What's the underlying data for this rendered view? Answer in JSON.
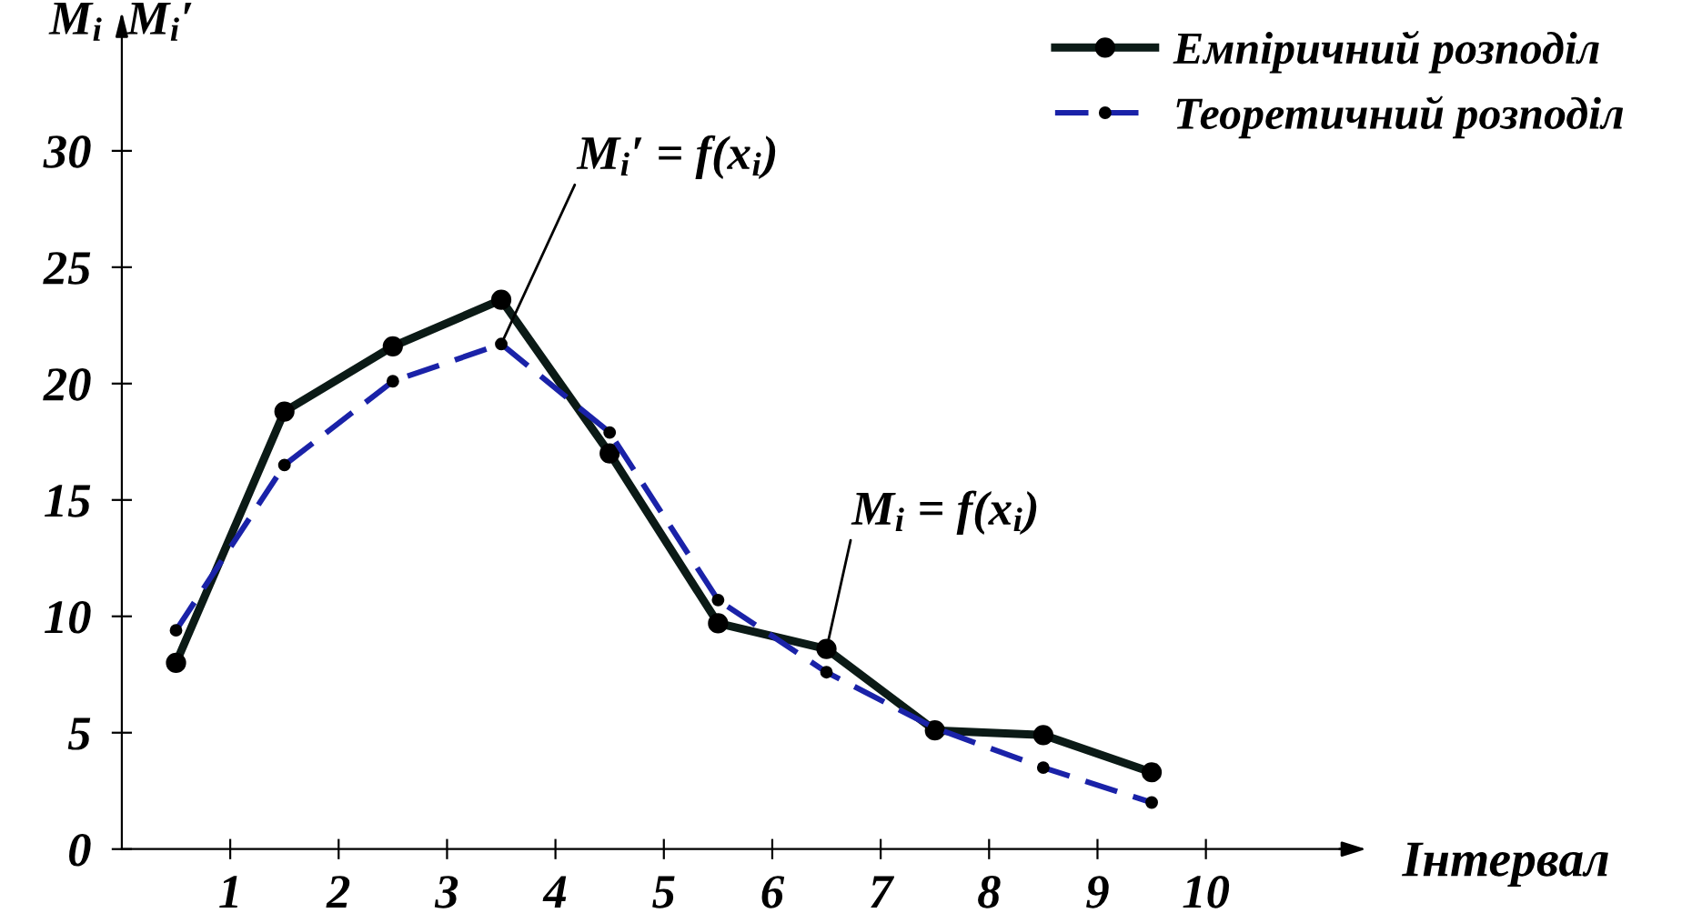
{
  "chart_data": {
    "type": "line",
    "xlabel": "Інтервал",
    "ylabel": "M$_{i}$  M$_{i}$′",
    "x": [
      0.5,
      1.5,
      2.5,
      3.5,
      4.5,
      5.5,
      6.5,
      7.5,
      8.5,
      9.5
    ],
    "series": [
      {
        "name": "Емпіричний розподіл",
        "color": "#0b1a16",
        "line_style": "solid",
        "values": [
          8.0,
          18.8,
          21.6,
          23.6,
          17.0,
          9.7,
          8.6,
          5.1,
          4.9,
          3.3
        ]
      },
      {
        "name": "Теоретичний розподіл",
        "color": "#1a22a8",
        "line_style": "dashed",
        "values": [
          9.4,
          16.5,
          20.1,
          21.7,
          17.9,
          10.7,
          7.6,
          5.2,
          3.5,
          2.0
        ]
      }
    ],
    "annotations": [
      {
        "text": "M$_{i}$′ = f(x$_{i}$)",
        "x": 3.5,
        "y": 21.7
      },
      {
        "text": "M$_{i}$ = f(x$_{i}$)",
        "x": 6.5,
        "y": 8.6
      }
    ],
    "xlim": [
      0,
      11.3
    ],
    "ylim": [
      0,
      35.5
    ],
    "xticks": [
      1,
      2,
      3,
      4,
      5,
      6,
      7,
      8,
      9,
      10
    ],
    "yticks": [
      0,
      5,
      10,
      15,
      20,
      25,
      30
    ],
    "marker": "circle",
    "grid": false,
    "legend": "top right"
  }
}
